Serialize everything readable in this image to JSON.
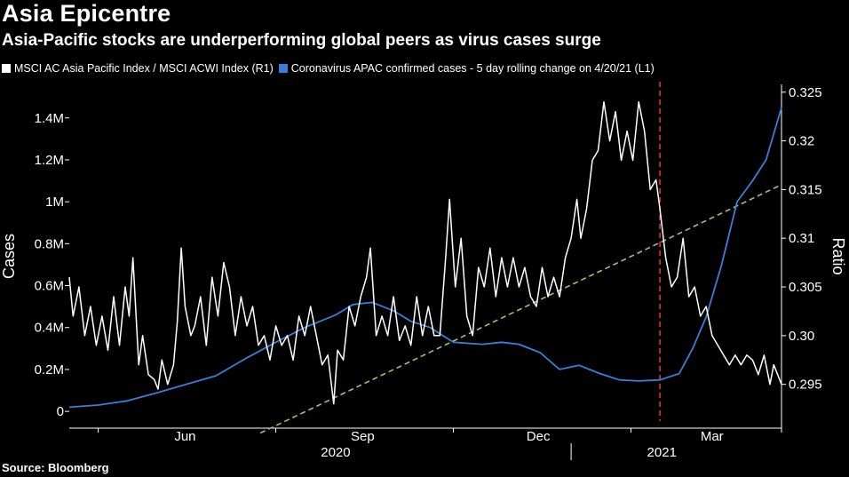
{
  "header": {
    "title": "Asia Epicentre",
    "subtitle": "Asia-Pacific stocks are underperforming global peers as virus cases surge"
  },
  "source": "Source: Bloomberg",
  "colors": {
    "background": "#000000",
    "ratio_series": "#ffffff",
    "cases_series": "#3b7dd8",
    "trendline": "#9dc46a",
    "event_line": "#e0303a"
  },
  "chart_data": {
    "type": "line",
    "legend_position": "top-left",
    "grid": false,
    "left_axis": {
      "label": "Cases",
      "ticks": [
        "0",
        "0.2M",
        "0.4M",
        "0.6M",
        "0.8M",
        "1M",
        "1.2M",
        "1.4M"
      ],
      "tick_values": [
        0,
        200000,
        400000,
        600000,
        800000,
        1000000,
        1200000,
        1400000
      ],
      "ylim": [
        -80000,
        1560000
      ]
    },
    "right_axis": {
      "label": "Ratio",
      "ticks": [
        "0.295",
        "0.30",
        "0.305",
        "0.31",
        "0.315",
        "0.32",
        "0.325"
      ],
      "tick_values": [
        0.295,
        0.3,
        0.305,
        0.31,
        0.315,
        0.32,
        0.325
      ],
      "ylim": [
        0.2905,
        0.3258
      ]
    },
    "x_axis": {
      "start": "2020-04-16",
      "end": "2021-04-20",
      "month_labels": [
        {
          "label": "Jun",
          "date": "2020-06-15"
        },
        {
          "label": "Sep",
          "date": "2020-09-15"
        },
        {
          "label": "Dec",
          "date": "2020-12-15"
        },
        {
          "label": "Mar",
          "date": "2021-03-15"
        }
      ],
      "tick_dates": [
        "2020-05-01",
        "2020-08-01",
        "2020-11-01",
        "2021-02-01",
        "2021-05-01"
      ],
      "year_labels": [
        {
          "label": "2020",
          "date": "2020-09-01"
        },
        {
          "label": "2021",
          "date": "2021-02-17"
        }
      ],
      "year_divider_date": "2021-01-01"
    },
    "event_line_date": "2021-02-16",
    "series": [
      {
        "name": "MSCI AC Asia Pacific Index / MSCI ACWI Index (R1)",
        "axis": "right",
        "points": [
          [
            "2020-04-16",
            0.306
          ],
          [
            "2020-04-18",
            0.302
          ],
          [
            "2020-04-21",
            0.305
          ],
          [
            "2020-04-24",
            0.3
          ],
          [
            "2020-04-27",
            0.303
          ],
          [
            "2020-04-30",
            0.299
          ],
          [
            "2020-05-03",
            0.302
          ],
          [
            "2020-05-06",
            0.2985
          ],
          [
            "2020-05-09",
            0.304
          ],
          [
            "2020-05-12",
            0.299
          ],
          [
            "2020-05-15",
            0.305
          ],
          [
            "2020-05-17",
            0.302
          ],
          [
            "2020-05-19",
            0.308
          ],
          [
            "2020-05-22",
            0.297
          ],
          [
            "2020-05-24",
            0.3
          ],
          [
            "2020-05-27",
            0.296
          ],
          [
            "2020-05-30",
            0.2955
          ],
          [
            "2020-06-01",
            0.2945
          ],
          [
            "2020-06-03",
            0.2975
          ],
          [
            "2020-06-06",
            0.295
          ],
          [
            "2020-06-09",
            0.297
          ],
          [
            "2020-06-11",
            0.3015
          ],
          [
            "2020-06-13",
            0.309
          ],
          [
            "2020-06-15",
            0.303
          ],
          [
            "2020-06-18",
            0.3
          ],
          [
            "2020-06-20",
            0.301
          ],
          [
            "2020-06-23",
            0.304
          ],
          [
            "2020-06-26",
            0.299
          ],
          [
            "2020-06-29",
            0.306
          ],
          [
            "2020-07-02",
            0.302
          ],
          [
            "2020-07-05",
            0.3075
          ],
          [
            "2020-07-08",
            0.305
          ],
          [
            "2020-07-11",
            0.3
          ],
          [
            "2020-07-14",
            0.304
          ],
          [
            "2020-07-17",
            0.301
          ],
          [
            "2020-07-20",
            0.303
          ],
          [
            "2020-07-23",
            0.299
          ],
          [
            "2020-07-26",
            0.3
          ],
          [
            "2020-07-29",
            0.2975
          ],
          [
            "2020-08-01",
            0.301
          ],
          [
            "2020-08-04",
            0.299
          ],
          [
            "2020-08-07",
            0.3
          ],
          [
            "2020-08-10",
            0.2975
          ],
          [
            "2020-08-13",
            0.302
          ],
          [
            "2020-08-16",
            0.3
          ],
          [
            "2020-08-19",
            0.303
          ],
          [
            "2020-08-22",
            0.3
          ],
          [
            "2020-08-25",
            0.297
          ],
          [
            "2020-08-28",
            0.298
          ],
          [
            "2020-08-31",
            0.293
          ],
          [
            "2020-09-02",
            0.2985
          ],
          [
            "2020-09-05",
            0.2975
          ],
          [
            "2020-09-08",
            0.303
          ],
          [
            "2020-09-11",
            0.301
          ],
          [
            "2020-09-14",
            0.304
          ],
          [
            "2020-09-17",
            0.306
          ],
          [
            "2020-09-19",
            0.309
          ],
          [
            "2020-09-22",
            0.3
          ],
          [
            "2020-09-25",
            0.302
          ],
          [
            "2020-09-28",
            0.3
          ],
          [
            "2020-10-01",
            0.304
          ],
          [
            "2020-10-04",
            0.2995
          ],
          [
            "2020-10-07",
            0.301
          ],
          [
            "2020-10-10",
            0.299
          ],
          [
            "2020-10-13",
            0.304
          ],
          [
            "2020-10-16",
            0.3
          ],
          [
            "2020-10-19",
            0.303
          ],
          [
            "2020-10-22",
            0.3
          ],
          [
            "2020-10-25",
            0.3
          ],
          [
            "2020-10-28",
            0.308
          ],
          [
            "2020-10-30",
            0.314
          ],
          [
            "2020-11-02",
            0.305
          ],
          [
            "2020-11-05",
            0.31
          ],
          [
            "2020-11-08",
            0.302
          ],
          [
            "2020-11-11",
            0.3
          ],
          [
            "2020-11-14",
            0.307
          ],
          [
            "2020-11-17",
            0.305
          ],
          [
            "2020-11-20",
            0.309
          ],
          [
            "2020-11-23",
            0.304
          ],
          [
            "2020-11-26",
            0.308
          ],
          [
            "2020-11-29",
            0.305
          ],
          [
            "2020-12-02",
            0.308
          ],
          [
            "2020-12-05",
            0.305
          ],
          [
            "2020-12-08",
            0.307
          ],
          [
            "2020-12-11",
            0.304
          ],
          [
            "2020-12-14",
            0.303
          ],
          [
            "2020-12-17",
            0.307
          ],
          [
            "2020-12-20",
            0.304
          ],
          [
            "2020-12-23",
            0.306
          ],
          [
            "2020-12-26",
            0.304
          ],
          [
            "2020-12-29",
            0.308
          ],
          [
            "2021-01-01",
            0.31
          ],
          [
            "2021-01-04",
            0.314
          ],
          [
            "2021-01-06",
            0.31
          ],
          [
            "2021-01-09",
            0.313
          ],
          [
            "2021-01-12",
            0.318
          ],
          [
            "2021-01-15",
            0.319
          ],
          [
            "2021-01-18",
            0.324
          ],
          [
            "2021-01-21",
            0.32
          ],
          [
            "2021-01-24",
            0.323
          ],
          [
            "2021-01-27",
            0.318
          ],
          [
            "2021-01-30",
            0.321
          ],
          [
            "2021-02-02",
            0.318
          ],
          [
            "2021-02-05",
            0.324
          ],
          [
            "2021-02-08",
            0.321
          ],
          [
            "2021-02-11",
            0.315
          ],
          [
            "2021-02-14",
            0.316
          ],
          [
            "2021-02-16",
            0.313
          ],
          [
            "2021-02-19",
            0.308
          ],
          [
            "2021-02-22",
            0.305
          ],
          [
            "2021-02-25",
            0.306
          ],
          [
            "2021-02-28",
            0.31
          ],
          [
            "2021-03-03",
            0.304
          ],
          [
            "2021-03-06",
            0.305
          ],
          [
            "2021-03-09",
            0.302
          ],
          [
            "2021-03-12",
            0.303
          ],
          [
            "2021-03-15",
            0.3
          ],
          [
            "2021-03-18",
            0.299
          ],
          [
            "2021-03-21",
            0.298
          ],
          [
            "2021-03-24",
            0.297
          ],
          [
            "2021-03-27",
            0.298
          ],
          [
            "2021-03-30",
            0.297
          ],
          [
            "2021-04-02",
            0.298
          ],
          [
            "2021-04-05",
            0.2975
          ],
          [
            "2021-04-08",
            0.296
          ],
          [
            "2021-04-11",
            0.298
          ],
          [
            "2021-04-14",
            0.295
          ],
          [
            "2021-04-16",
            0.297
          ],
          [
            "2021-04-20",
            0.295
          ]
        ]
      },
      {
        "name": "Coronavirus APAC confirmed cases - 5 day rolling change on 4/20/21 (L1)",
        "axis": "left",
        "points": [
          [
            "2020-04-16",
            20000
          ],
          [
            "2020-05-01",
            30000
          ],
          [
            "2020-05-16",
            50000
          ],
          [
            "2020-06-01",
            90000
          ],
          [
            "2020-06-16",
            130000
          ],
          [
            "2020-07-01",
            170000
          ],
          [
            "2020-07-16",
            250000
          ],
          [
            "2020-08-01",
            330000
          ],
          [
            "2020-08-16",
            400000
          ],
          [
            "2020-09-01",
            460000
          ],
          [
            "2020-09-10",
            510000
          ],
          [
            "2020-09-20",
            520000
          ],
          [
            "2020-10-01",
            480000
          ],
          [
            "2020-10-10",
            430000
          ],
          [
            "2020-10-20",
            400000
          ],
          [
            "2020-11-01",
            330000
          ],
          [
            "2020-11-16",
            320000
          ],
          [
            "2020-11-26",
            330000
          ],
          [
            "2020-12-05",
            320000
          ],
          [
            "2020-12-16",
            280000
          ],
          [
            "2020-12-26",
            200000
          ],
          [
            "2021-01-05",
            220000
          ],
          [
            "2021-01-16",
            180000
          ],
          [
            "2021-01-26",
            150000
          ],
          [
            "2021-02-05",
            145000
          ],
          [
            "2021-02-16",
            150000
          ],
          [
            "2021-02-26",
            180000
          ],
          [
            "2021-03-05",
            300000
          ],
          [
            "2021-03-12",
            450000
          ],
          [
            "2021-03-20",
            700000
          ],
          [
            "2021-03-28",
            1000000
          ],
          [
            "2021-04-05",
            1100000
          ],
          [
            "2021-04-12",
            1200000
          ],
          [
            "2021-04-20",
            1450000
          ]
        ]
      }
    ],
    "trendline": {
      "axis": "right",
      "start": [
        "2020-07-24",
        0.29
      ],
      "end": [
        "2021-04-20",
        0.3155
      ]
    }
  }
}
